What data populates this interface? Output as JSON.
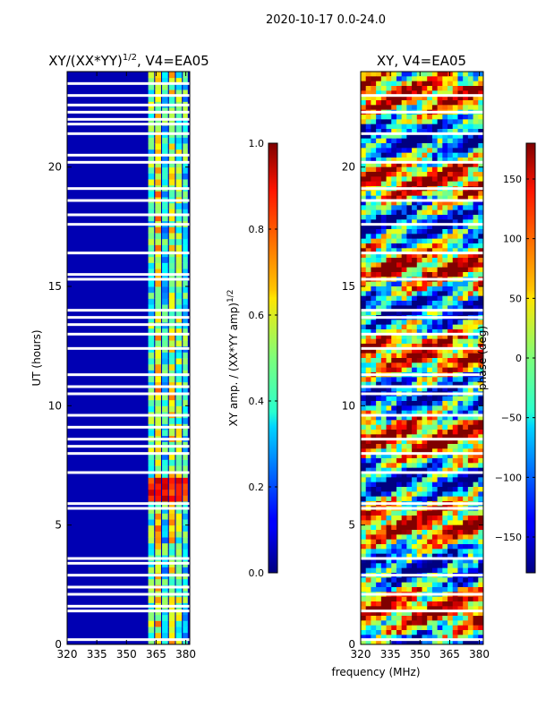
{
  "figure": {
    "suptitle": "2020-10-17 0.0-24.0",
    "shared_xlabel": "frequency (MHz)"
  },
  "chart_data": [
    {
      "type": "heatmap",
      "title_main": "XY/(XX*YY)",
      "title_exponent": "1/2",
      "title_suffix": ", V4=EA05",
      "xlabel": "",
      "ylabel": "UT (hours)",
      "x_ticks": [
        320,
        335,
        350,
        365,
        380
      ],
      "xlim": [
        320,
        382
      ],
      "y_ticks": [
        0,
        5,
        10,
        15,
        20
      ],
      "ylim": [
        0,
        24
      ],
      "colormap": "jet",
      "colorbar": {
        "label_main": "XY amp. / (XX*YY amp)",
        "label_exponent": "1/2",
        "min": 0.0,
        "max": 1.0,
        "ticks": [
          "0.0",
          "0.2",
          "0.4",
          "0.6",
          "0.8",
          "1.0"
        ]
      },
      "background_value": 0.05,
      "channel_bands_mhz": [
        [
          361,
          364
        ],
        [
          364.5,
          367.5
        ],
        [
          368,
          371
        ],
        [
          371.5,
          374.5
        ],
        [
          375,
          378
        ],
        [
          378.5,
          381
        ]
      ],
      "band_values": [
        0.45,
        0.62,
        0.38,
        0.58,
        0.5,
        0.4
      ],
      "high_amplitude_event": {
        "ut_range": [
          6.0,
          7.0
        ],
        "value": 0.85
      },
      "flagged_gaps_ut": [
        0.2,
        1.4,
        1.6,
        2.1,
        2.4,
        2.9,
        3.4,
        3.6,
        5.7,
        5.9,
        7.2,
        8.0,
        8.3,
        8.6,
        9.1,
        9.6,
        10.5,
        10.8,
        11.3,
        12.4,
        13.0,
        13.4,
        13.7,
        14.0,
        15.3,
        15.5,
        16.4,
        17.6,
        18.0,
        18.6,
        19.1,
        20.2,
        20.5,
        21.4,
        21.8,
        22.0,
        22.3,
        22.6,
        23.0,
        23.5
      ]
    },
    {
      "type": "heatmap",
      "title_main": "XY, V4=EA05",
      "xlabel": "frequency (MHz)",
      "ylabel": "",
      "x_ticks": [
        320,
        335,
        350,
        365,
        380
      ],
      "xlim": [
        320,
        382
      ],
      "y_ticks": [
        0,
        5,
        10,
        15,
        20
      ],
      "ylim": [
        0,
        24
      ],
      "colormap": "jet",
      "colorbar": {
        "label_main": "phase (deg)",
        "min": -180,
        "max": 180,
        "ticks": [
          "−150",
          "−100",
          "−50",
          "0",
          "50",
          "100",
          "150"
        ],
        "tick_values": [
          -150,
          -100,
          -50,
          0,
          50,
          100,
          150
        ]
      },
      "flagged_gaps_ut": [
        0.2,
        1.4,
        2.1,
        2.9,
        3.6,
        5.7,
        5.9,
        7.2,
        8.0,
        8.6,
        9.6,
        10.5,
        10.8,
        11.3,
        12.4,
        13.0,
        13.7,
        14.0,
        15.3,
        16.4,
        17.6,
        18.6,
        19.1,
        20.2,
        21.4,
        22.3,
        23.0
      ]
    }
  ]
}
